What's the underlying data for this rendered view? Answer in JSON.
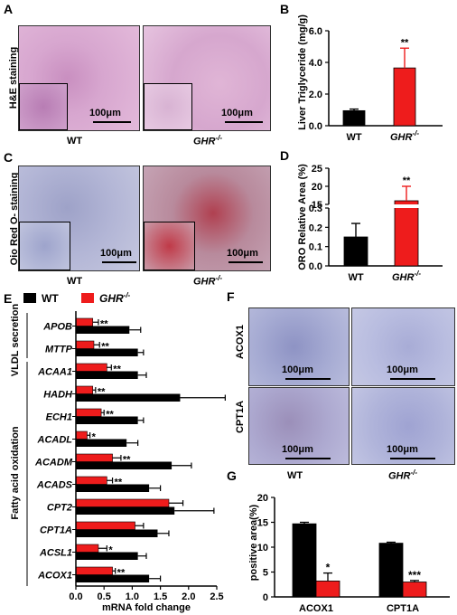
{
  "figure": {
    "panel_labels": [
      "A",
      "B",
      "C",
      "D",
      "E",
      "F",
      "G"
    ],
    "panelA": {
      "side_label": "H&E staining",
      "image_labels": [
        "WT",
        "GHR",
        "-/-"
      ],
      "scale": "100μm"
    },
    "panelC": {
      "side_label": "Oio Red O- staining",
      "image_labels": [
        "WT",
        "GHR",
        "-/-"
      ],
      "scale": "100μm"
    },
    "panelF": {
      "row_labels": [
        "ACOX1",
        "CPT1A"
      ],
      "col_labels": [
        "WT",
        "GHR",
        "-/-"
      ],
      "scale": "100μm"
    },
    "legend": {
      "wt": "WT",
      "ghr": "GHR",
      "ghr_sup": "-/-"
    },
    "colors": {
      "wt": "#000000",
      "ghr": "#ee1c1c"
    }
  },
  "chart_data": [
    {
      "panel": "B",
      "type": "bar",
      "ylabel": "Liver Triglyceride (mg/g)",
      "categories": [
        "WT",
        "GHR-/-"
      ],
      "values": [
        0.95,
        3.65
      ],
      "errors": [
        0.1,
        1.25
      ],
      "ylim": [
        0,
        6
      ],
      "yticks": [
        "0.0",
        "2.0",
        "4.0",
        "6.0"
      ],
      "significance": [
        "",
        "**"
      ]
    },
    {
      "panel": "D",
      "type": "bar",
      "ylabel": "ORO Relative Area (%)",
      "categories": [
        "WT",
        "GHR-/-"
      ],
      "values": [
        0.15,
        16
      ],
      "errors": [
        0.07,
        4
      ],
      "broken_axis": true,
      "yticks_lower": [
        "0.0",
        "0.1",
        "0.2",
        "0.3"
      ],
      "yticks_upper": [
        "15",
        "20",
        "25"
      ],
      "significance": [
        "",
        "**"
      ]
    },
    {
      "panel": "E",
      "type": "bar",
      "orientation": "horizontal",
      "xlabel": "mRNA fold change",
      "xticks": [
        "0.0",
        "0.5",
        "1.0",
        "1.5",
        "2.0",
        "2.5"
      ],
      "xlim": [
        0,
        2.5
      ],
      "groups": [
        {
          "name": "VLDL secretion",
          "genes": [
            "APOB",
            "MTTP"
          ]
        },
        {
          "name": "Fatty acid oxidation",
          "genes": [
            "ACAA1",
            "HADH",
            "ECH1",
            "ACADL",
            "ACADM",
            "ACADS",
            "CPT2",
            "CPT1A",
            "ACSL1",
            "ACOX1"
          ]
        }
      ],
      "categories": [
        "APOB",
        "MTTP",
        "ACAA1",
        "HADH",
        "ECH1",
        "ACADL",
        "ACADM",
        "ACADS",
        "CPT2",
        "CPT1A",
        "ACSL1",
        "ACOX1"
      ],
      "series": [
        {
          "name": "WT",
          "values": [
            0.95,
            1.1,
            1.1,
            1.85,
            1.1,
            0.9,
            1.7,
            1.3,
            1.75,
            1.45,
            1.1,
            1.3
          ],
          "errors": [
            0.2,
            0.1,
            0.15,
            0.8,
            0.1,
            0.2,
            0.35,
            0.2,
            0.7,
            0.2,
            0.15,
            0.2
          ]
        },
        {
          "name": "GHR-/-",
          "values": [
            0.3,
            0.32,
            0.55,
            0.3,
            0.45,
            0.2,
            0.65,
            0.55,
            1.65,
            1.05,
            0.4,
            0.65
          ],
          "errors": [
            0.1,
            0.1,
            0.08,
            0.05,
            0.05,
            0.05,
            0.15,
            0.1,
            0.25,
            0.15,
            0.15,
            0.05
          ]
        }
      ],
      "significance": [
        "**",
        "**",
        "**",
        "**",
        "**",
        "*",
        "**",
        "**",
        "",
        "",
        "*",
        "**"
      ]
    },
    {
      "panel": "G",
      "type": "bar",
      "ylabel": "positive area(%)",
      "categories": [
        "ACOX1",
        "CPT1A"
      ],
      "series": [
        {
          "name": "WT",
          "values": [
            14.7,
            10.8
          ],
          "errors": [
            0.3,
            0.2
          ]
        },
        {
          "name": "GHR-/-",
          "values": [
            3.2,
            3.0
          ],
          "errors": [
            1.6,
            0.3
          ]
        }
      ],
      "ylim": [
        0,
        20
      ],
      "yticks": [
        "0",
        "5",
        "10",
        "15",
        "20"
      ],
      "significance": [
        "*",
        "***"
      ]
    }
  ]
}
